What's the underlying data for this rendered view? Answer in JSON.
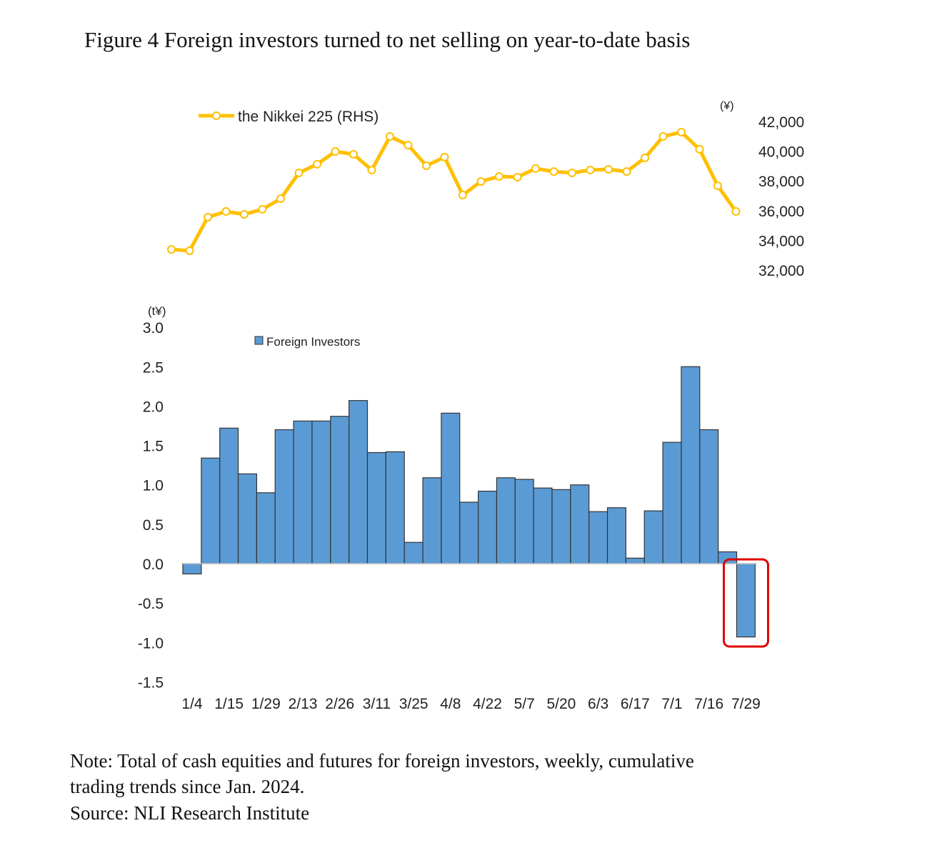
{
  "title": "Figure 4 Foreign investors turned to net selling on year-to-date basis",
  "notes": [
    "Note: Total of cash equities and futures for foreign investors, weekly, cumulative",
    "trading trends since Jan. 2024.",
    "Source: NLI Research Institute"
  ],
  "chart_data": [
    {
      "type": "line",
      "legend": "the Nikkei 225 (RHS)",
      "unit_label": "(¥)",
      "y_ticks": [
        "42,000",
        "40,000",
        "38,000",
        "36,000",
        "34,000",
        "32,000"
      ],
      "ylim": [
        32000,
        42000
      ],
      "color": "#FFC000",
      "values": [
        33390,
        33300,
        35560,
        35940,
        35750,
        36090,
        36800,
        38540,
        39120,
        39980,
        39790,
        38730,
        40990,
        40410,
        39020,
        39600,
        37050,
        37960,
        38300,
        38250,
        38830,
        38630,
        38540,
        38730,
        38780,
        38630,
        39550,
        40990,
        41280,
        40130,
        37670,
        35940
      ]
    },
    {
      "type": "bar",
      "legend": "Foreign Investors",
      "unit_label": "(t¥)",
      "ylim": [
        -1.5,
        3.0
      ],
      "y_ticks": [
        "3.0",
        "2.5",
        "2.0",
        "1.5",
        "1.0",
        "0.5",
        "0.0",
        "-0.5",
        "-1.0",
        "-1.5"
      ],
      "x_tick_labels": [
        "1/4",
        "1/15",
        "1/29",
        "2/13",
        "2/26",
        "3/11",
        "3/25",
        "4/8",
        "4/22",
        "5/7",
        "5/20",
        "6/3",
        "6/17",
        "7/1",
        "7/16",
        "7/29"
      ],
      "color": "#5B9BD5",
      "highlight_color": "#E00000",
      "values": [
        -0.13,
        1.34,
        1.72,
        1.14,
        0.9,
        1.7,
        1.81,
        1.81,
        1.87,
        2.07,
        1.41,
        1.42,
        0.27,
        1.09,
        1.91,
        0.78,
        0.92,
        1.09,
        1.07,
        0.96,
        0.94,
        1.0,
        0.66,
        0.71,
        0.07,
        0.67,
        1.54,
        2.5,
        1.7,
        0.15,
        -0.93
      ],
      "highlighted_index": 30
    }
  ]
}
